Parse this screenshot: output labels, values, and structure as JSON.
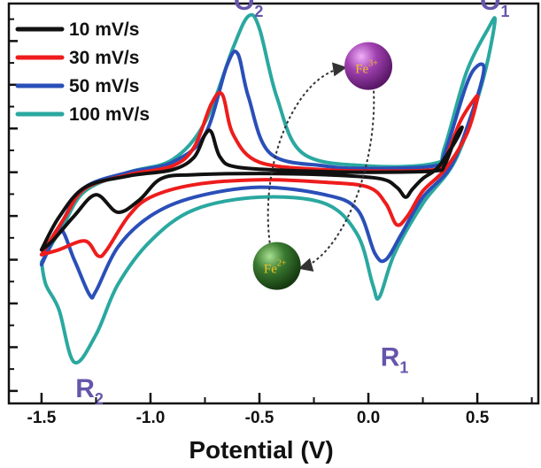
{
  "chart_data": {
    "type": "line",
    "title": "",
    "xlabel": "Potential (V)",
    "ylabel": "",
    "xlim": [
      -1.65,
      0.78
    ],
    "ylim": [
      -1.85,
      1.35
    ],
    "x_ticks": [
      "-1.5",
      "-1.0",
      "-0.5",
      "0.0",
      "0.5"
    ],
    "x_tick_values": [
      -1.5,
      -1.0,
      -0.5,
      0.0,
      0.5
    ],
    "y_tick_labels_visible": false,
    "grid": false,
    "legend": "top-left",
    "series": [
      {
        "name": "10 mV/s",
        "color": "#111111",
        "forward": [
          [
            -1.5,
            -0.62
          ],
          [
            -1.42,
            -0.36
          ],
          [
            -1.3,
            -0.12
          ],
          [
            -1.1,
            -0.03
          ],
          [
            -0.9,
            0.02
          ],
          [
            -0.8,
            0.12
          ],
          [
            -0.75,
            0.3
          ],
          [
            -0.72,
            0.32
          ],
          [
            -0.68,
            0.12
          ],
          [
            -0.6,
            0.04
          ],
          [
            -0.3,
            0.01
          ],
          [
            0.0,
            0.0
          ],
          [
            0.3,
            0.01
          ],
          [
            0.35,
            0.06
          ],
          [
            0.4,
            0.28
          ],
          [
            0.43,
            0.36
          ]
        ],
        "reverse": [
          [
            0.43,
            0.36
          ],
          [
            0.4,
            0.25
          ],
          [
            0.32,
            0.04
          ],
          [
            0.25,
            -0.05
          ],
          [
            0.2,
            -0.14
          ],
          [
            0.17,
            -0.2
          ],
          [
            0.13,
            -0.12
          ],
          [
            0.05,
            -0.05
          ],
          [
            -0.2,
            -0.02
          ],
          [
            -0.5,
            -0.01
          ],
          [
            -0.8,
            -0.02
          ],
          [
            -0.95,
            -0.05
          ],
          [
            -1.05,
            -0.22
          ],
          [
            -1.15,
            -0.32
          ],
          [
            -1.25,
            -0.18
          ],
          [
            -1.35,
            -0.35
          ],
          [
            -1.45,
            -0.55
          ],
          [
            -1.5,
            -0.62
          ]
        ]
      },
      {
        "name": "30 mV/s",
        "color": "#ee1c1c",
        "forward": [
          [
            -1.5,
            -0.66
          ],
          [
            -1.4,
            -0.38
          ],
          [
            -1.3,
            -0.13
          ],
          [
            -1.1,
            -0.02
          ],
          [
            -0.9,
            0.05
          ],
          [
            -0.8,
            0.2
          ],
          [
            -0.72,
            0.55
          ],
          [
            -0.67,
            0.62
          ],
          [
            -0.62,
            0.3
          ],
          [
            -0.5,
            0.08
          ],
          [
            -0.2,
            0.02
          ],
          [
            0.0,
            0.01
          ],
          [
            0.3,
            0.02
          ],
          [
            0.35,
            0.1
          ],
          [
            0.42,
            0.4
          ],
          [
            0.48,
            0.57
          ],
          [
            0.5,
            0.59
          ]
        ],
        "reverse": [
          [
            0.5,
            0.59
          ],
          [
            0.45,
            0.3
          ],
          [
            0.35,
            0.02
          ],
          [
            0.25,
            -0.15
          ],
          [
            0.18,
            -0.35
          ],
          [
            0.13,
            -0.42
          ],
          [
            0.08,
            -0.25
          ],
          [
            0.0,
            -0.12
          ],
          [
            -0.2,
            -0.08
          ],
          [
            -0.5,
            -0.06
          ],
          [
            -0.8,
            -0.1
          ],
          [
            -1.0,
            -0.2
          ],
          [
            -1.1,
            -0.35
          ],
          [
            -1.2,
            -0.62
          ],
          [
            -1.24,
            -0.67
          ],
          [
            -1.3,
            -0.55
          ],
          [
            -1.42,
            -0.62
          ],
          [
            -1.5,
            -0.66
          ]
        ]
      },
      {
        "name": "50 mV/s",
        "color": "#2a4fb8",
        "forward": [
          [
            -1.5,
            -0.74
          ],
          [
            -1.4,
            -0.38
          ],
          [
            -1.3,
            -0.12
          ],
          [
            -1.1,
            0.0
          ],
          [
            -0.9,
            0.08
          ],
          [
            -0.75,
            0.3
          ],
          [
            -0.65,
            0.85
          ],
          [
            -0.6,
            0.95
          ],
          [
            -0.55,
            0.6
          ],
          [
            -0.45,
            0.15
          ],
          [
            -0.2,
            0.05
          ],
          [
            0.0,
            0.03
          ],
          [
            0.3,
            0.05
          ],
          [
            0.35,
            0.15
          ],
          [
            0.45,
            0.7
          ],
          [
            0.5,
            0.85
          ],
          [
            0.53,
            0.82
          ]
        ],
        "reverse": [
          [
            0.53,
            0.82
          ],
          [
            0.48,
            0.5
          ],
          [
            0.38,
            0.05
          ],
          [
            0.25,
            -0.2
          ],
          [
            0.15,
            -0.5
          ],
          [
            0.08,
            -0.7
          ],
          [
            0.03,
            -0.65
          ],
          [
            -0.05,
            -0.3
          ],
          [
            -0.2,
            -0.18
          ],
          [
            -0.5,
            -0.12
          ],
          [
            -0.8,
            -0.2
          ],
          [
            -1.0,
            -0.35
          ],
          [
            -1.15,
            -0.6
          ],
          [
            -1.25,
            -0.95
          ],
          [
            -1.28,
            -0.98
          ],
          [
            -1.35,
            -0.7
          ],
          [
            -1.42,
            -0.45
          ],
          [
            -1.5,
            -0.74
          ]
        ]
      },
      {
        "name": "100 mV/s",
        "color": "#2aa8a0",
        "forward": [
          [
            -1.5,
            -0.72
          ],
          [
            -1.4,
            -0.42
          ],
          [
            -1.3,
            -0.15
          ],
          [
            -1.1,
            0.0
          ],
          [
            -0.9,
            0.1
          ],
          [
            -0.75,
            0.4
          ],
          [
            -0.62,
            1.0
          ],
          [
            -0.55,
            1.25
          ],
          [
            -0.5,
            1.15
          ],
          [
            -0.42,
            0.6
          ],
          [
            -0.3,
            0.15
          ],
          [
            0.0,
            0.05
          ],
          [
            0.3,
            0.07
          ],
          [
            0.35,
            0.2
          ],
          [
            0.45,
            0.8
          ],
          [
            0.55,
            1.15
          ],
          [
            0.58,
            1.2
          ]
        ],
        "reverse": [
          [
            0.58,
            1.2
          ],
          [
            0.52,
            0.7
          ],
          [
            0.4,
            0.1
          ],
          [
            0.25,
            -0.25
          ],
          [
            0.12,
            -0.65
          ],
          [
            0.05,
            -1.0
          ],
          [
            0.02,
            -0.9
          ],
          [
            -0.05,
            -0.5
          ],
          [
            -0.2,
            -0.25
          ],
          [
            -0.5,
            -0.2
          ],
          [
            -0.8,
            -0.3
          ],
          [
            -1.0,
            -0.55
          ],
          [
            -1.15,
            -0.9
          ],
          [
            -1.25,
            -1.3
          ],
          [
            -1.35,
            -1.52
          ],
          [
            -1.42,
            -1.1
          ],
          [
            -1.48,
            -0.9
          ],
          [
            -1.5,
            -0.72
          ]
        ]
      }
    ],
    "peak_labels": [
      {
        "main": "O",
        "sub": "2",
        "x": -0.55,
        "y": 1.3
      },
      {
        "main": "O",
        "sub": "1",
        "x": 0.58,
        "y": 1.3
      },
      {
        "main": "R",
        "sub": "1",
        "x": 0.12,
        "y": -1.55
      },
      {
        "main": "R",
        "sub": "2",
        "x": -1.28,
        "y": -1.8
      }
    ],
    "ions": [
      {
        "label": "Fe",
        "sup": "3+",
        "color": "#a040b0",
        "x": 0.0,
        "y": 0.85
      },
      {
        "label": "Fe",
        "sup": "2+",
        "color": "#3a7a30",
        "x": -0.42,
        "y": -0.75
      }
    ]
  }
}
